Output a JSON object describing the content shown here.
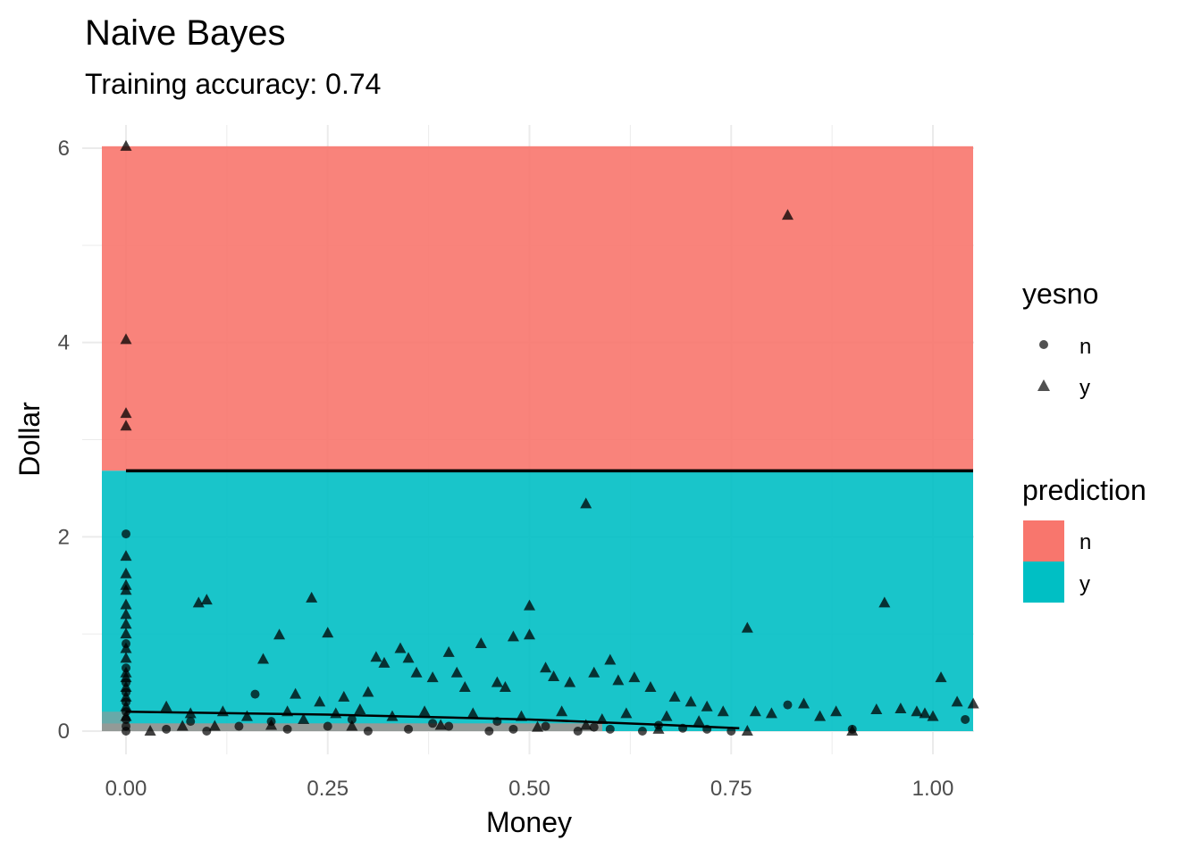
{
  "chart_data": {
    "type": "scatter",
    "title": "Naive Bayes",
    "subtitle": "Training accuracy: 0.74",
    "xlabel": "Money",
    "ylabel": "Dollar",
    "xlim": [
      -0.06,
      1.05
    ],
    "ylim": [
      -0.02,
      6.05
    ],
    "x_ticks": [
      0.0,
      0.25,
      0.5,
      0.75,
      1.0
    ],
    "x_tick_labels": [
      "0.00",
      "0.25",
      "0.50",
      "0.75",
      "1.00"
    ],
    "y_ticks": [
      0,
      2,
      4,
      6
    ],
    "y_tick_labels": [
      "0",
      "2",
      "4",
      "6"
    ],
    "grid": true,
    "legend_position": "right",
    "prediction_regions": [
      {
        "label": "n",
        "y_from": 2.68,
        "y_to": 6.02,
        "color": "#F8766D"
      },
      {
        "label": "y",
        "y_from": 0.0,
        "y_to": 2.68,
        "color": "#00BFC4"
      }
    ],
    "decision_boundary": {
      "y": 2.68,
      "x_from": 0.0,
      "x_to": 1.05
    },
    "smooth_curve": [
      [
        0.0,
        0.2
      ],
      [
        0.25,
        0.17
      ],
      [
        0.5,
        0.12
      ],
      [
        0.65,
        0.07
      ],
      [
        0.76,
        0.03
      ]
    ],
    "legend_shape": {
      "title": "yesno",
      "items": [
        {
          "label": "n",
          "shape": "circle"
        },
        {
          "label": "y",
          "shape": "triangle"
        }
      ]
    },
    "legend_fill": {
      "title": "prediction",
      "items": [
        {
          "label": "n",
          "color": "#F8766D"
        },
        {
          "label": "y",
          "color": "#00BFC4"
        }
      ]
    },
    "series": [
      {
        "name": "n",
        "shape": "circle",
        "points": [
          [
            0.0,
            2.03
          ],
          [
            0.0,
            0.9
          ],
          [
            0.0,
            0.65
          ],
          [
            0.0,
            0.5
          ],
          [
            0.0,
            0.4
          ],
          [
            0.0,
            0.3
          ],
          [
            0.0,
            0.2
          ],
          [
            0.0,
            0.12
          ],
          [
            0.0,
            0.05
          ],
          [
            0.0,
            0.0
          ],
          [
            0.16,
            0.38
          ],
          [
            0.05,
            0.02
          ],
          [
            0.1,
            0.0
          ],
          [
            0.14,
            0.05
          ],
          [
            0.2,
            0.02
          ],
          [
            0.25,
            0.05
          ],
          [
            0.3,
            0.0
          ],
          [
            0.35,
            0.02
          ],
          [
            0.4,
            0.05
          ],
          [
            0.45,
            0.0
          ],
          [
            0.48,
            0.02
          ],
          [
            0.52,
            0.05
          ],
          [
            0.56,
            0.0
          ],
          [
            0.6,
            0.02
          ],
          [
            0.64,
            0.0
          ],
          [
            0.69,
            0.03
          ],
          [
            0.75,
            0.0
          ],
          [
            0.82,
            0.27
          ],
          [
            0.9,
            0.02
          ],
          [
            1.04,
            0.12
          ],
          [
            0.08,
            0.1
          ],
          [
            0.18,
            0.1
          ],
          [
            0.28,
            0.12
          ],
          [
            0.38,
            0.08
          ],
          [
            0.46,
            0.1
          ],
          [
            0.58,
            0.04
          ],
          [
            0.66,
            0.06
          ],
          [
            0.72,
            0.02
          ]
        ]
      },
      {
        "name": "y",
        "shape": "triangle",
        "points": [
          [
            0.0,
            6.02
          ],
          [
            0.0,
            4.03
          ],
          [
            0.0,
            3.27
          ],
          [
            0.0,
            3.14
          ],
          [
            0.82,
            5.31
          ],
          [
            0.57,
            2.34
          ],
          [
            0.0,
            1.8
          ],
          [
            0.0,
            1.62
          ],
          [
            0.0,
            1.5
          ],
          [
            0.0,
            1.45
          ],
          [
            0.0,
            1.3
          ],
          [
            0.0,
            1.2
          ],
          [
            0.0,
            1.1
          ],
          [
            0.0,
            1.0
          ],
          [
            0.0,
            0.85
          ],
          [
            0.0,
            0.75
          ],
          [
            0.0,
            0.6
          ],
          [
            0.0,
            0.55
          ],
          [
            0.0,
            0.45
          ],
          [
            0.0,
            0.35
          ],
          [
            0.0,
            0.25
          ],
          [
            0.0,
            0.15
          ],
          [
            0.09,
            1.32
          ],
          [
            0.1,
            1.35
          ],
          [
            0.23,
            1.37
          ],
          [
            0.19,
            0.99
          ],
          [
            0.25,
            1.01
          ],
          [
            0.17,
            0.74
          ],
          [
            0.5,
            1.29
          ],
          [
            0.5,
            0.99
          ],
          [
            0.48,
            0.97
          ],
          [
            0.44,
            0.9
          ],
          [
            0.4,
            0.81
          ],
          [
            0.35,
            0.75
          ],
          [
            0.34,
            0.85
          ],
          [
            0.31,
            0.76
          ],
          [
            0.32,
            0.7
          ],
          [
            0.6,
            0.73
          ],
          [
            0.53,
            0.56
          ],
          [
            0.55,
            0.5
          ],
          [
            0.58,
            0.6
          ],
          [
            0.63,
            0.55
          ],
          [
            0.77,
            1.06
          ],
          [
            0.94,
            1.32
          ],
          [
            1.01,
            0.55
          ],
          [
            0.46,
            0.5
          ],
          [
            0.42,
            0.45
          ],
          [
            0.38,
            0.55
          ],
          [
            0.3,
            0.4
          ],
          [
            0.27,
            0.35
          ],
          [
            0.24,
            0.3
          ],
          [
            0.21,
            0.38
          ],
          [
            0.36,
            0.6
          ],
          [
            0.41,
            0.6
          ],
          [
            0.47,
            0.45
          ],
          [
            0.52,
            0.65
          ],
          [
            0.61,
            0.52
          ],
          [
            0.65,
            0.45
          ],
          [
            0.68,
            0.35
          ],
          [
            0.7,
            0.3
          ],
          [
            0.72,
            0.25
          ],
          [
            0.74,
            0.2
          ],
          [
            0.05,
            0.25
          ],
          [
            0.08,
            0.18
          ],
          [
            0.12,
            0.2
          ],
          [
            0.15,
            0.15
          ],
          [
            0.2,
            0.2
          ],
          [
            0.22,
            0.12
          ],
          [
            0.26,
            0.18
          ],
          [
            0.29,
            0.22
          ],
          [
            0.33,
            0.15
          ],
          [
            0.37,
            0.2
          ],
          [
            0.43,
            0.18
          ],
          [
            0.49,
            0.15
          ],
          [
            0.54,
            0.2
          ],
          [
            0.59,
            0.12
          ],
          [
            0.62,
            0.18
          ],
          [
            0.67,
            0.15
          ],
          [
            0.71,
            0.1
          ],
          [
            0.78,
            0.2
          ],
          [
            0.84,
            0.28
          ],
          [
            0.86,
            0.15
          ],
          [
            0.9,
            0.0
          ],
          [
            0.93,
            0.22
          ],
          [
            0.96,
            0.23
          ],
          [
            0.99,
            0.18
          ],
          [
            1.0,
            0.15
          ],
          [
            1.03,
            0.3
          ],
          [
            1.05,
            0.28
          ],
          [
            0.8,
            0.18
          ],
          [
            0.88,
            0.2
          ],
          [
            0.98,
            0.2
          ],
          [
            0.11,
            0.05
          ],
          [
            0.18,
            0.06
          ],
          [
            0.28,
            0.05
          ],
          [
            0.39,
            0.06
          ],
          [
            0.51,
            0.04
          ],
          [
            0.57,
            0.06
          ],
          [
            0.66,
            0.02
          ],
          [
            0.77,
            0.0
          ],
          [
            0.03,
            0.0
          ],
          [
            0.07,
            0.05
          ]
        ]
      }
    ]
  }
}
